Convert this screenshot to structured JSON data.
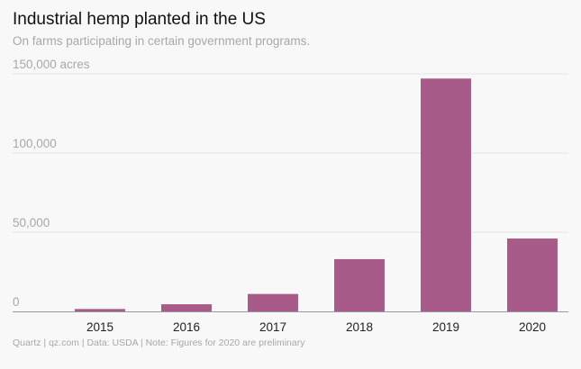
{
  "chart_data": {
    "type": "bar",
    "title": "Industrial hemp planted in the US",
    "subtitle": "On farms participating in certain government programs.",
    "xlabel": "",
    "ylabel": "",
    "y_unit_label": "acres",
    "categories": [
      "2015",
      "2016",
      "2017",
      "2018",
      "2019",
      "2020"
    ],
    "values": [
      1500,
      4500,
      11000,
      33000,
      147000,
      46000
    ],
    "ylim": [
      0,
      150000
    ],
    "yticks": [
      0,
      50000,
      100000,
      150000
    ],
    "ytick_labels": [
      "0",
      "50,000",
      "100,000",
      "150,000 acres"
    ],
    "grid": true,
    "bar_color": "#a85a88",
    "source": "Quartz | qz.com | Data: USDA | Note: Figures for 2020 are preliminary"
  }
}
